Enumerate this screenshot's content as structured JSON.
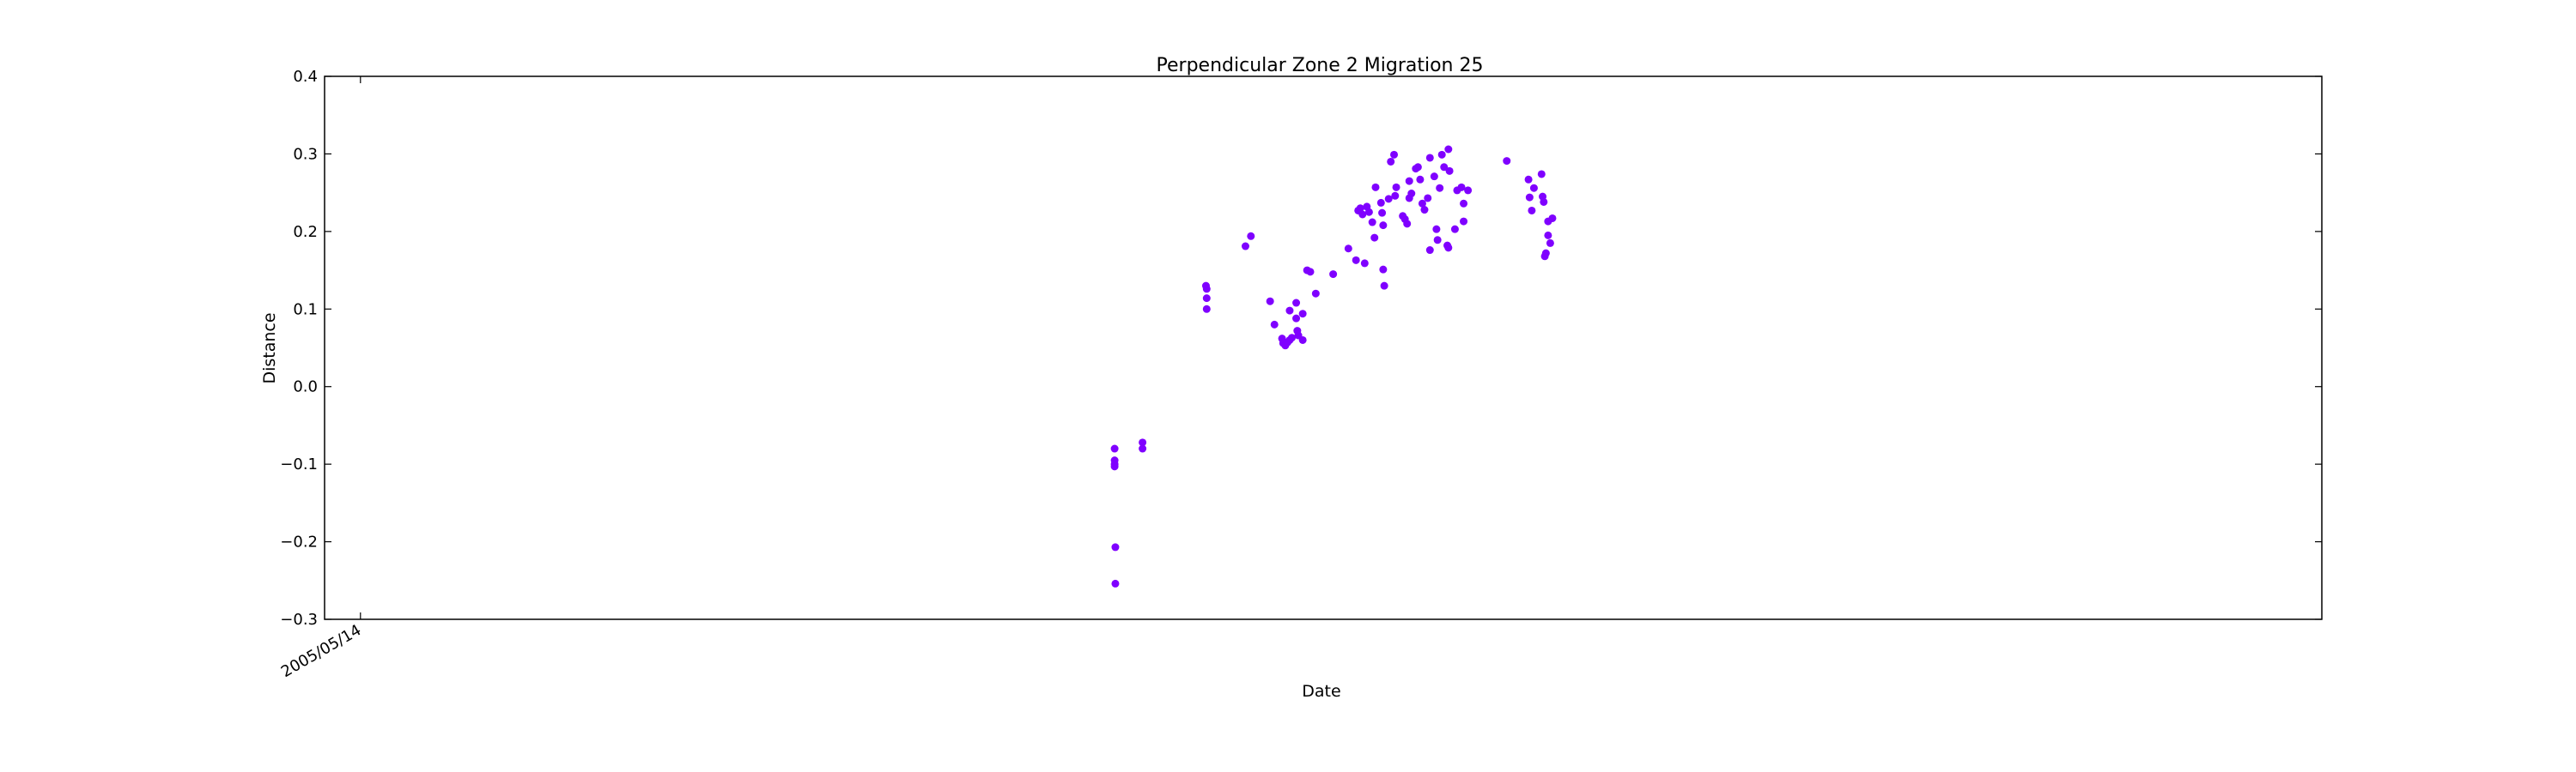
{
  "chart_data": {
    "type": "scatter",
    "title": "Perpendicular Zone 2 Migration 25",
    "xlabel": "Date",
    "ylabel": "Distance",
    "ylim": [
      -0.3,
      0.4
    ],
    "yticks": [
      "0.4",
      "0.3",
      "0.2",
      "0.1",
      "0.0",
      "−0.1",
      "−0.2",
      "−0.3"
    ],
    "yticks_values": [
      0.4,
      0.3,
      0.2,
      0.1,
      0.0,
      -0.1,
      -0.2,
      -0.3
    ],
    "xtick_labels": [
      "2005/05/14"
    ],
    "xtick_dates": [
      "2005-05-14"
    ],
    "xlim_dates": [
      "2005-02-04",
      "2020-03-08"
    ],
    "grid": false,
    "marker_color": "#7f00ff",
    "series": [
      {
        "points": [
          {
            "x": "2011-01-24",
            "y": -0.08
          },
          {
            "x": "2011-01-24",
            "y": -0.095
          },
          {
            "x": "2011-01-24",
            "y": -0.1
          },
          {
            "x": "2011-01-24",
            "y": -0.103
          },
          {
            "x": "2011-01-26",
            "y": -0.207
          },
          {
            "x": "2011-01-26",
            "y": -0.254
          },
          {
            "x": "2011-04-11",
            "y": -0.08
          },
          {
            "x": "2011-04-11",
            "y": -0.072
          },
          {
            "x": "2011-10-03",
            "y": 0.13
          },
          {
            "x": "2011-10-05",
            "y": 0.126
          },
          {
            "x": "2011-10-05",
            "y": 0.114
          },
          {
            "x": "2011-10-05",
            "y": 0.1
          },
          {
            "x": "2012-01-20",
            "y": 0.181
          },
          {
            "x": "2012-02-04",
            "y": 0.194
          },
          {
            "x": "2012-03-28",
            "y": 0.11
          },
          {
            "x": "2012-04-09",
            "y": 0.08
          },
          {
            "x": "2012-04-30",
            "y": 0.062
          },
          {
            "x": "2012-05-03",
            "y": 0.056
          },
          {
            "x": "2012-05-09",
            "y": 0.053
          },
          {
            "x": "2012-05-15",
            "y": 0.057
          },
          {
            "x": "2012-05-21",
            "y": 0.06
          },
          {
            "x": "2012-05-21",
            "y": 0.098
          },
          {
            "x": "2012-05-27",
            "y": 0.063
          },
          {
            "x": "2012-06-08",
            "y": 0.088
          },
          {
            "x": "2012-06-08",
            "y": 0.108
          },
          {
            "x": "2012-06-11",
            "y": 0.072
          },
          {
            "x": "2012-06-14",
            "y": 0.066
          },
          {
            "x": "2012-06-26",
            "y": 0.06
          },
          {
            "x": "2012-06-26",
            "y": 0.094
          },
          {
            "x": "2012-07-08",
            "y": 0.15
          },
          {
            "x": "2012-07-17",
            "y": 0.148
          },
          {
            "x": "2012-08-01",
            "y": 0.12
          },
          {
            "x": "2012-09-18",
            "y": 0.145
          },
          {
            "x": "2012-10-30",
            "y": 0.178
          },
          {
            "x": "2012-11-20",
            "y": 0.163
          },
          {
            "x": "2012-11-26",
            "y": 0.227
          },
          {
            "x": "2012-12-02",
            "y": 0.23
          },
          {
            "x": "2012-12-08",
            "y": 0.222
          },
          {
            "x": "2012-12-14",
            "y": 0.159
          },
          {
            "x": "2012-12-20",
            "y": 0.232
          },
          {
            "x": "2012-12-26",
            "y": 0.225
          },
          {
            "x": "2013-01-04",
            "y": 0.212
          },
          {
            "x": "2013-01-10",
            "y": 0.192
          },
          {
            "x": "2013-01-13",
            "y": 0.257
          },
          {
            "x": "2013-01-28",
            "y": 0.237
          },
          {
            "x": "2013-01-31",
            "y": 0.224
          },
          {
            "x": "2013-02-03",
            "y": 0.208
          },
          {
            "x": "2013-02-03",
            "y": 0.151
          },
          {
            "x": "2013-02-06",
            "y": 0.13
          },
          {
            "x": "2013-02-18",
            "y": 0.242
          },
          {
            "x": "2013-02-24",
            "y": 0.29
          },
          {
            "x": "2013-03-05",
            "y": 0.299
          },
          {
            "x": "2013-03-08",
            "y": 0.246
          },
          {
            "x": "2013-03-11",
            "y": 0.257
          },
          {
            "x": "2013-03-29",
            "y": 0.22
          },
          {
            "x": "2013-04-04",
            "y": 0.216
          },
          {
            "x": "2013-04-10",
            "y": 0.21
          },
          {
            "x": "2013-04-16",
            "y": 0.265
          },
          {
            "x": "2013-04-16",
            "y": 0.243
          },
          {
            "x": "2013-04-22",
            "y": 0.249
          },
          {
            "x": "2013-05-04",
            "y": 0.281
          },
          {
            "x": "2013-05-10",
            "y": 0.283
          },
          {
            "x": "2013-05-16",
            "y": 0.267
          },
          {
            "x": "2013-05-22",
            "y": 0.236
          },
          {
            "x": "2013-05-28",
            "y": 0.228
          },
          {
            "x": "2013-06-06",
            "y": 0.243
          },
          {
            "x": "2013-06-12",
            "y": 0.295
          },
          {
            "x": "2013-06-12",
            "y": 0.176
          },
          {
            "x": "2013-06-24",
            "y": 0.271
          },
          {
            "x": "2013-06-30",
            "y": 0.203
          },
          {
            "x": "2013-07-03",
            "y": 0.189
          },
          {
            "x": "2013-07-09",
            "y": 0.256
          },
          {
            "x": "2013-07-15",
            "y": 0.299
          },
          {
            "x": "2013-07-21",
            "y": 0.283
          },
          {
            "x": "2013-07-30",
            "y": 0.182
          },
          {
            "x": "2013-08-02",
            "y": 0.179
          },
          {
            "x": "2013-08-02",
            "y": 0.306
          },
          {
            "x": "2013-08-05",
            "y": 0.278
          },
          {
            "x": "2013-08-20",
            "y": 0.203
          },
          {
            "x": "2013-08-26",
            "y": 0.253
          },
          {
            "x": "2013-09-07",
            "y": 0.257
          },
          {
            "x": "2013-09-13",
            "y": 0.213
          },
          {
            "x": "2013-09-13",
            "y": 0.236
          },
          {
            "x": "2013-09-25",
            "y": 0.253
          },
          {
            "x": "2014-01-10",
            "y": 0.291
          },
          {
            "x": "2014-03-11",
            "y": 0.267
          },
          {
            "x": "2014-03-14",
            "y": 0.244
          },
          {
            "x": "2014-03-20",
            "y": 0.227
          },
          {
            "x": "2014-03-26",
            "y": 0.256
          },
          {
            "x": "2014-04-16",
            "y": 0.274
          },
          {
            "x": "2014-04-19",
            "y": 0.245
          },
          {
            "x": "2014-04-22",
            "y": 0.238
          },
          {
            "x": "2014-04-25",
            "y": 0.168
          },
          {
            "x": "2014-04-28",
            "y": 0.172
          },
          {
            "x": "2014-05-04",
            "y": 0.213
          },
          {
            "x": "2014-05-04",
            "y": 0.195
          },
          {
            "x": "2014-05-10",
            "y": 0.185
          },
          {
            "x": "2014-05-16",
            "y": 0.217
          }
        ]
      }
    ]
  }
}
